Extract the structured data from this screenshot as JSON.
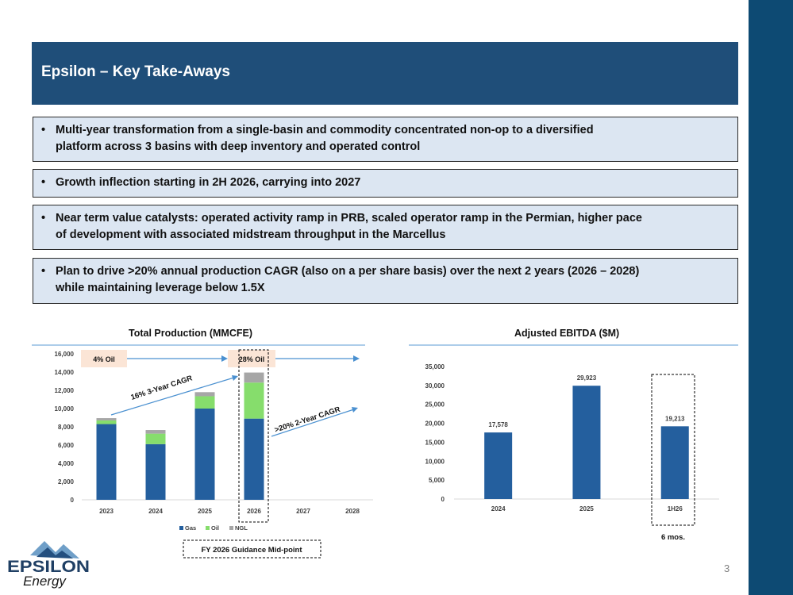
{
  "slide": {
    "title": "Epsilon – Key Take-Aways",
    "page_number": "3",
    "bullets": [
      {
        "lines": [
          "Multi-year transformation from a single-basin and commodity concentrated non-op to a diversified",
          "platform across 3 basins with deep inventory and operated control"
        ]
      },
      {
        "lines": [
          "Growth inflection starting in 2H 2026, carrying into 2027"
        ]
      },
      {
        "lines": [
          "Near term value catalysts: operated activity ramp in PRB, scaled operator ramp in the Permian, higher pace",
          "of development with associated midstream throughput in the Marcellus"
        ]
      },
      {
        "lines": [
          "Plan to drive >20% annual production CAGR (also on a per share basis) over the next 2 years (2026 – 2028)",
          "while maintaining leverage below 1.5X"
        ]
      }
    ],
    "bullet_symbol": "•"
  },
  "logo": {
    "word": "EPSILON",
    "sub": "Energy"
  },
  "colors": {
    "gas": "#245f9e",
    "oil": "#86dd6c",
    "ngl": "#a6a6a6",
    "ebitda": "#245f9e",
    "header": "#1f4e79",
    "sidebar": "#0d4a73",
    "callout": "#fbe5d6",
    "arrow": "#4a90d0"
  },
  "chart_data": [
    {
      "type": "bar",
      "stacked": true,
      "title": "Total Production (MMCFE)",
      "categories": [
        "2023",
        "2024",
        "2025",
        "2026",
        "2027",
        "2028"
      ],
      "series": [
        {
          "name": "Gas",
          "values": [
            8300,
            6100,
            10000,
            8900,
            null,
            null
          ]
        },
        {
          "name": "Oil",
          "values": [
            400,
            1150,
            1350,
            3950,
            null,
            null
          ]
        },
        {
          "name": "NGL",
          "values": [
            250,
            400,
            450,
            1100,
            null,
            null
          ]
        }
      ],
      "ylim": [
        0,
        16000
      ],
      "yticks": [
        "0",
        "2,000",
        "4,000",
        "6,000",
        "8,000",
        "10,000",
        "12,000",
        "14,000",
        "16,000"
      ],
      "legend_position": "bottom",
      "annotations": {
        "oil_2023": "4% Oil",
        "oil_2026": "28% Oil",
        "cagr_3yr": "16% 3-Year CAGR",
        "cagr_2yr": ">20% 2-Year CAGR",
        "guidance": "FY 2026 Guidance Mid-point"
      }
    },
    {
      "type": "bar",
      "title": "Adjusted EBITDA ($M)",
      "categories": [
        "2024",
        "2025",
        "1H26"
      ],
      "values": [
        17578,
        29923,
        19213
      ],
      "labels": [
        "17,578",
        "29,923",
        "19,213"
      ],
      "ylim": [
        0,
        35000
      ],
      "yticks": [
        "0",
        "5,000",
        "10,000",
        "15,000",
        "20,000",
        "25,000",
        "30,000",
        "35,000"
      ],
      "annotations": {
        "partial_period": "6 mos."
      }
    }
  ]
}
